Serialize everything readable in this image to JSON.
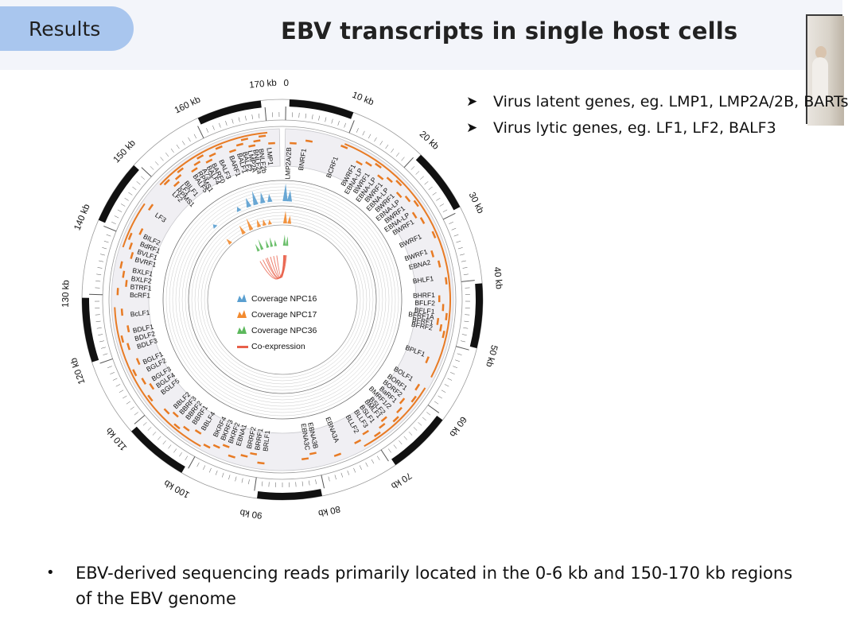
{
  "header": {
    "section_tab": "Results",
    "title": "EBV transcripts in single host cells"
  },
  "bullets": [
    "Virus latent genes, eg.  LMP1, LMP2A/2B, BARTs",
    "Virus lytic genes, eg. LF1, LF2, BALF3"
  ],
  "bottom_note": "EBV-derived sequencing reads primarily located in the 0-6 kb and 150-170 kb regions of the EBV genome",
  "figure": {
    "kb_marks": [
      {
        "label": "0",
        "kb": 0
      },
      {
        "label": "10 kb",
        "kb": 10
      },
      {
        "label": "20 kb",
        "kb": 20
      },
      {
        "label": "30 kb",
        "kb": 30
      },
      {
        "label": "40 kb",
        "kb": 40
      },
      {
        "label": "50 kb",
        "kb": 50
      },
      {
        "label": "60 kb",
        "kb": 60
      },
      {
        "label": "70 kb",
        "kb": 70
      },
      {
        "label": "80 kb",
        "kb": 80
      },
      {
        "label": "90 kb",
        "kb": 90
      },
      {
        "label": "100 kb",
        "kb": 100
      },
      {
        "label": "110 kb",
        "kb": 110
      },
      {
        "label": "120 kb",
        "kb": 120
      },
      {
        "label": "130 kb",
        "kb": 130
      },
      {
        "label": "140 kb",
        "kb": 140
      },
      {
        "label": "150 kb",
        "kb": 150
      },
      {
        "label": "160 kb",
        "kb": 160
      },
      {
        "label": "170 kb",
        "kb": 170
      }
    ],
    "genome_length_kb": 172,
    "genes": [
      {
        "name": "LMP2A/2B",
        "kb": 0.8
      },
      {
        "name": "BNRF1",
        "kb": 3.5
      },
      {
        "name": "BCRF1",
        "kb": 9.5
      },
      {
        "name": "BWRF1",
        "kb": 13
      },
      {
        "name": "EBNA-LP",
        "kb": 14.5
      },
      {
        "name": "BWRF1",
        "kb": 16
      },
      {
        "name": "EBNA-LP",
        "kb": 17.5
      },
      {
        "name": "BWRF1",
        "kb": 19
      },
      {
        "name": "EBNA-LP",
        "kb": 20.5
      },
      {
        "name": "BWRF1",
        "kb": 22
      },
      {
        "name": "EBNA-LP",
        "kb": 23.5
      },
      {
        "name": "BWRF1",
        "kb": 25
      },
      {
        "name": "EBNA-LP",
        "kb": 26.5
      },
      {
        "name": "BWRF1",
        "kb": 28
      },
      {
        "name": "BWRF1",
        "kb": 31
      },
      {
        "name": "BWRF1",
        "kb": 34
      },
      {
        "name": "EBNA2",
        "kb": 36
      },
      {
        "name": "BHLF1",
        "kb": 39
      },
      {
        "name": "BHRF1",
        "kb": 42
      },
      {
        "name": "BFLF2",
        "kb": 43.5
      },
      {
        "name": "BFLF1",
        "kb": 45
      },
      {
        "name": "BFRF1A",
        "kb": 46
      },
      {
        "name": "BFRF1",
        "kb": 47
      },
      {
        "name": "BFRF2",
        "kb": 48
      },
      {
        "name": "BPLF1",
        "kb": 53
      },
      {
        "name": "BOLF1",
        "kb": 58
      },
      {
        "name": "BORF1",
        "kb": 60
      },
      {
        "name": "BORF2",
        "kb": 61.5
      },
      {
        "name": "BaRF1",
        "kb": 63
      },
      {
        "name": "BMRF1/2",
        "kb": 64.5
      },
      {
        "name": "BSLF2",
        "kb": 66
      },
      {
        "name": "BMLF1",
        "kb": 67
      },
      {
        "name": "BSLF1",
        "kb": 68.5
      },
      {
        "name": "BLLF3",
        "kb": 70
      },
      {
        "name": "BLLF2",
        "kb": 72
      },
      {
        "name": "EBNA3A",
        "kb": 76
      },
      {
        "name": "EBNA3B",
        "kb": 80
      },
      {
        "name": "EBNA3C",
        "kb": 81.5
      },
      {
        "name": "BRLF1",
        "kb": 89
      },
      {
        "name": "BRRF1",
        "kb": 90.5
      },
      {
        "name": "BRRF2",
        "kb": 92
      },
      {
        "name": "EBNA1",
        "kb": 94
      },
      {
        "name": "BKRF2",
        "kb": 95.5
      },
      {
        "name": "BKRF3",
        "kb": 97
      },
      {
        "name": "BKRF4",
        "kb": 98.5
      },
      {
        "name": "BBLF4",
        "kb": 101
      },
      {
        "name": "BBRF1",
        "kb": 103
      },
      {
        "name": "BBRF2",
        "kb": 104.5
      },
      {
        "name": "BBRF3",
        "kb": 106
      },
      {
        "name": "BBLF2",
        "kb": 107.5
      },
      {
        "name": "BGLF5",
        "kb": 111
      },
      {
        "name": "BGLF4",
        "kb": 112.5
      },
      {
        "name": "BGLF3",
        "kb": 114
      },
      {
        "name": "BGLF2",
        "kb": 116
      },
      {
        "name": "BGLF1",
        "kb": 117.5
      },
      {
        "name": "BDLF3",
        "kb": 120.5
      },
      {
        "name": "BDLF2",
        "kb": 122
      },
      {
        "name": "BDLF1",
        "kb": 123.5
      },
      {
        "name": "BcLF1",
        "kb": 126.5
      },
      {
        "name": "BcRF1",
        "kb": 130
      },
      {
        "name": "BTRF1",
        "kb": 131.5
      },
      {
        "name": "BXLF2",
        "kb": 133
      },
      {
        "name": "BXLF1",
        "kb": 134.5
      },
      {
        "name": "BVRF1",
        "kb": 136.5
      },
      {
        "name": "BVLF1",
        "kb": 138
      },
      {
        "name": "BdRF1",
        "kb": 139.5
      },
      {
        "name": "BILF2",
        "kb": 141
      },
      {
        "name": "LF3",
        "kb": 145.5
      },
      {
        "name": "LF2",
        "kb": 150.5
      },
      {
        "name": "RPMS1",
        "kb": 151.5
      },
      {
        "name": "LF1",
        "kb": 152.5
      },
      {
        "name": "BILF1",
        "kb": 153.5
      },
      {
        "name": "BALF5",
        "kb": 155.5
      },
      {
        "name": "RPMS1",
        "kb": 156.5
      },
      {
        "name": "A73",
        "kb": 157.5
      },
      {
        "name": "BALF4",
        "kb": 158.5
      },
      {
        "name": "BARF0",
        "kb": 159.5
      },
      {
        "name": "BALF3",
        "kb": 161
      },
      {
        "name": "BARF1",
        "kb": 163
      },
      {
        "name": "BALF1",
        "kb": 164.5
      },
      {
        "name": "BALF2",
        "kb": 165.5
      },
      {
        "name": "LMP2A",
        "kb": 166.5
      },
      {
        "name": "BNLF2a",
        "kb": 167.5
      },
      {
        "name": "BNLF2b",
        "kb": 168.5
      },
      {
        "name": "LMP1",
        "kb": 170
      }
    ],
    "legend": [
      {
        "label": "Coverage NPC16",
        "color": "#5a9fd0"
      },
      {
        "label": "Coverage NPC17",
        "color": "#f28a2e"
      },
      {
        "label": "Coverage NPC36",
        "color": "#5cb85c"
      },
      {
        "label": "Co-expression",
        "color": "#e8604a"
      }
    ],
    "colors": {
      "gene_bar": "#e87b24",
      "coverage_npc16": "#5a9fd0",
      "coverage_npc17": "#f28a2e",
      "coverage_npc36": "#5cb85c",
      "links": "#e8604a",
      "track_fill": "#f0eff3",
      "ring_black": "#111111"
    }
  }
}
